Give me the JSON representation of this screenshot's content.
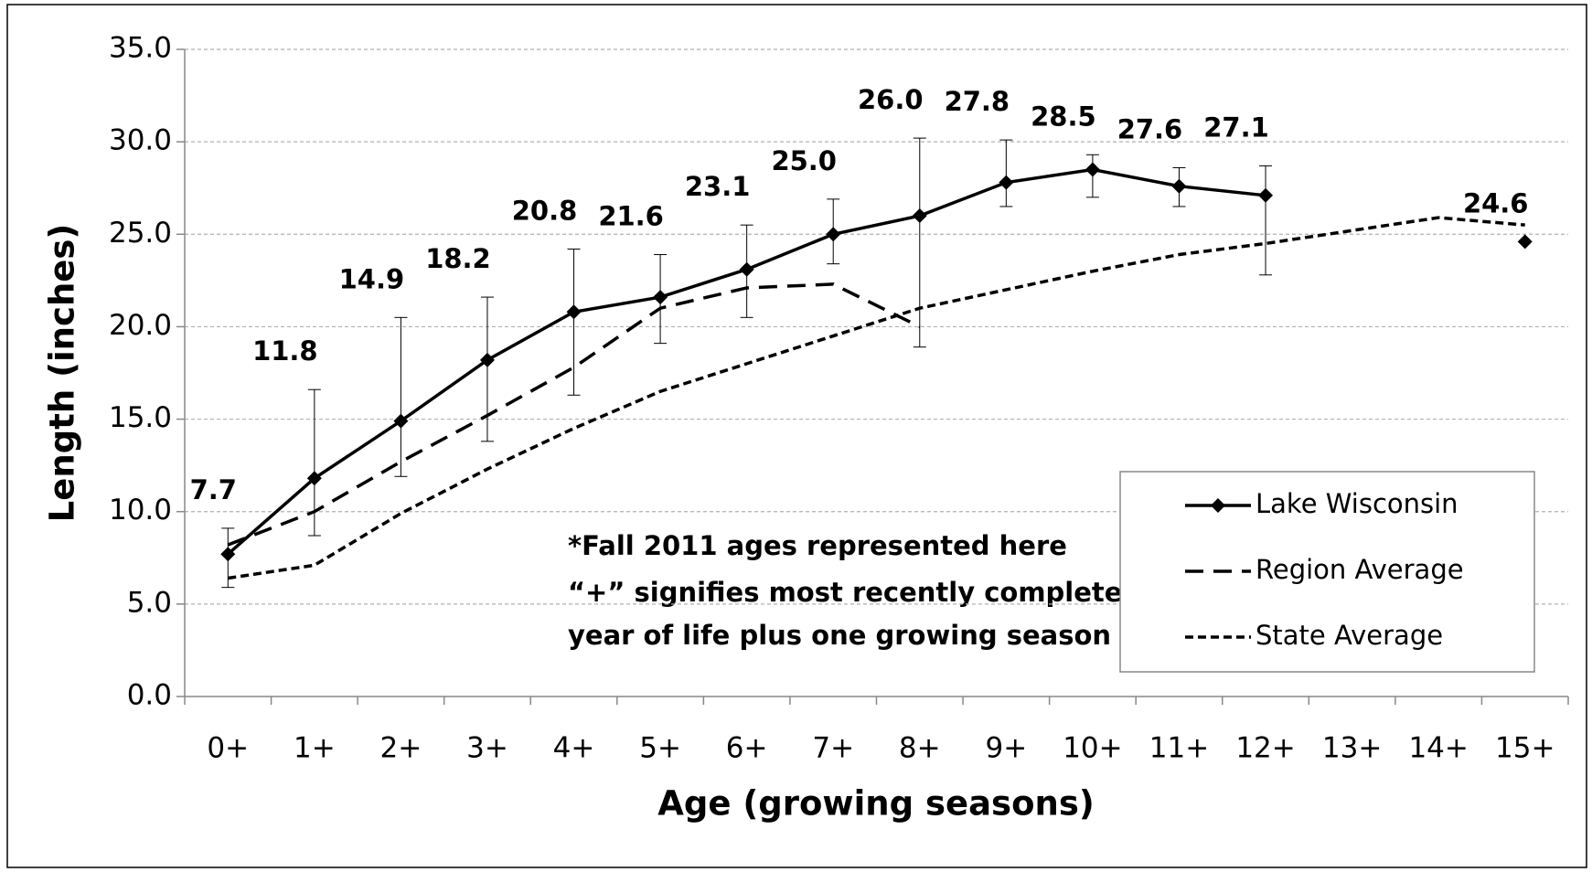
{
  "chart_data": {
    "type": "line",
    "xlabel": "Age (growing seasons)",
    "ylabel": "Length (inches)",
    "categories": [
      "0+",
      "1+",
      "2+",
      "3+",
      "4+",
      "5+",
      "6+",
      "7+",
      "8+",
      "9+",
      "10+",
      "11+",
      "12+",
      "13+",
      "14+",
      "15+"
    ],
    "series": [
      {
        "name": "Lake Wisconsin",
        "color": "#000000",
        "style": "solid",
        "marker": "diamond",
        "values": [
          7.7,
          11.8,
          14.9,
          18.2,
          20.8,
          21.6,
          23.1,
          25.0,
          26.0,
          27.8,
          28.5,
          27.6,
          27.1,
          null,
          null,
          24.6
        ],
        "value_labels": [
          "7.7",
          "11.8",
          "14.9",
          "18.2",
          "20.8",
          "21.6",
          "23.1",
          "25.0",
          "26.0",
          "27.8",
          "28.5",
          "27.6",
          "27.1",
          null,
          null,
          "24.6"
        ],
        "error_low": [
          5.9,
          8.7,
          11.9,
          13.8,
          16.3,
          19.1,
          20.5,
          23.4,
          18.9,
          26.5,
          27.0,
          26.5,
          22.8,
          null,
          null,
          null
        ],
        "error_high": [
          9.1,
          16.6,
          20.5,
          21.6,
          24.2,
          23.9,
          25.5,
          26.9,
          30.2,
          30.1,
          29.3,
          28.6,
          28.7,
          null,
          null,
          null
        ]
      },
      {
        "name": "Region Average",
        "color": "#000000",
        "style": "long-dash",
        "values": [
          8.2,
          10.0,
          12.7,
          15.2,
          17.8,
          21.0,
          22.1,
          22.3,
          20.0,
          null,
          null,
          null,
          null,
          null,
          null,
          null
        ]
      },
      {
        "name": "State Average",
        "color": "#000000",
        "style": "short-dash",
        "values": [
          6.4,
          7.1,
          9.9,
          12.3,
          14.5,
          16.5,
          18.0,
          19.5,
          21.0,
          22.0,
          23.0,
          23.9,
          24.5,
          25.2,
          25.9,
          25.5
        ]
      }
    ],
    "ylim": [
      0,
      35
    ],
    "yticks": [
      {
        "value": 0,
        "label": "0.0"
      },
      {
        "value": 5,
        "label": "5.0"
      },
      {
        "value": 10,
        "label": "10.0"
      },
      {
        "value": 15,
        "label": "15.0"
      },
      {
        "value": 20,
        "label": "20.0"
      },
      {
        "value": 25,
        "label": "25.0"
      },
      {
        "value": 30,
        "label": "30.0"
      },
      {
        "value": 35,
        "label": "35.0"
      }
    ],
    "grid": true,
    "legend": "lower right",
    "annotations": [
      "*Fall 2011 ages represented here",
      "“+” signifies  most recently completed",
      "year of life plus one growing season"
    ]
  }
}
